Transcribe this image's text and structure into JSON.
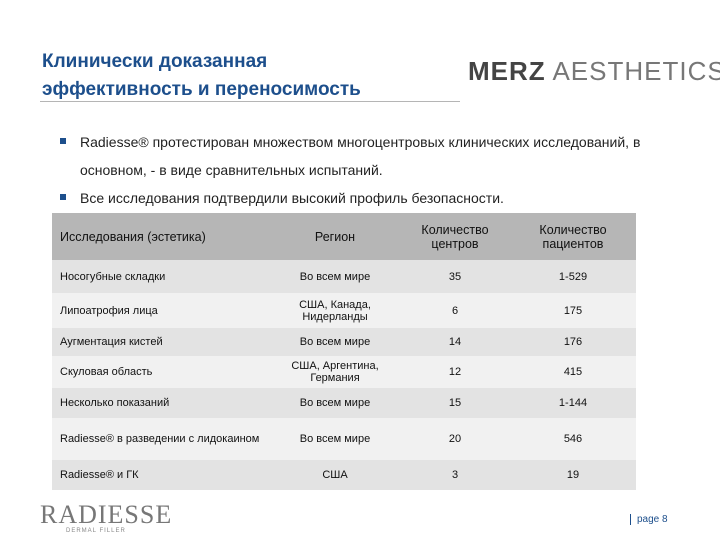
{
  "header": {
    "title_lines": [
      "Клинически доказанная",
      "эффективность и переносимость"
    ],
    "logo": {
      "bold": "MERZ",
      "light": "AESTHETICS"
    }
  },
  "bullets": [
    "Radiesse® протестирован множеством многоцентровых клинических исследований, в основном, - в виде сравнительных испытаний.",
    "Все исследования подтвердили высокий профиль безопасности."
  ],
  "table": {
    "columns": [
      "Исследования (эстетика)",
      "Регион",
      "Количество центров",
      "Количество пациентов"
    ],
    "rows": [
      [
        "Носогубные складки",
        "Во всем мире",
        "35",
        "1-529"
      ],
      [
        "Липоатрофия лица",
        "США, Канада, Нидерланды",
        "6",
        "175"
      ],
      [
        "Аугментация кистей",
        "Во всем мире",
        "14",
        "176"
      ],
      [
        "Скуловая область",
        "США, Аргентина, Германия",
        "12",
        "415"
      ],
      [
        "Несколько показаний",
        "Во всем мире",
        "15",
        "1-144"
      ],
      [
        "Radiesse® в разведении с лидокаином",
        "Во всем мире",
        "20",
        "546"
      ],
      [
        "Radiesse® и ГК",
        "США",
        "3",
        "19"
      ]
    ]
  },
  "footer": {
    "brand": "RADIESSE",
    "brand_sub": "DERMAL FILLER",
    "page": "page 8"
  }
}
